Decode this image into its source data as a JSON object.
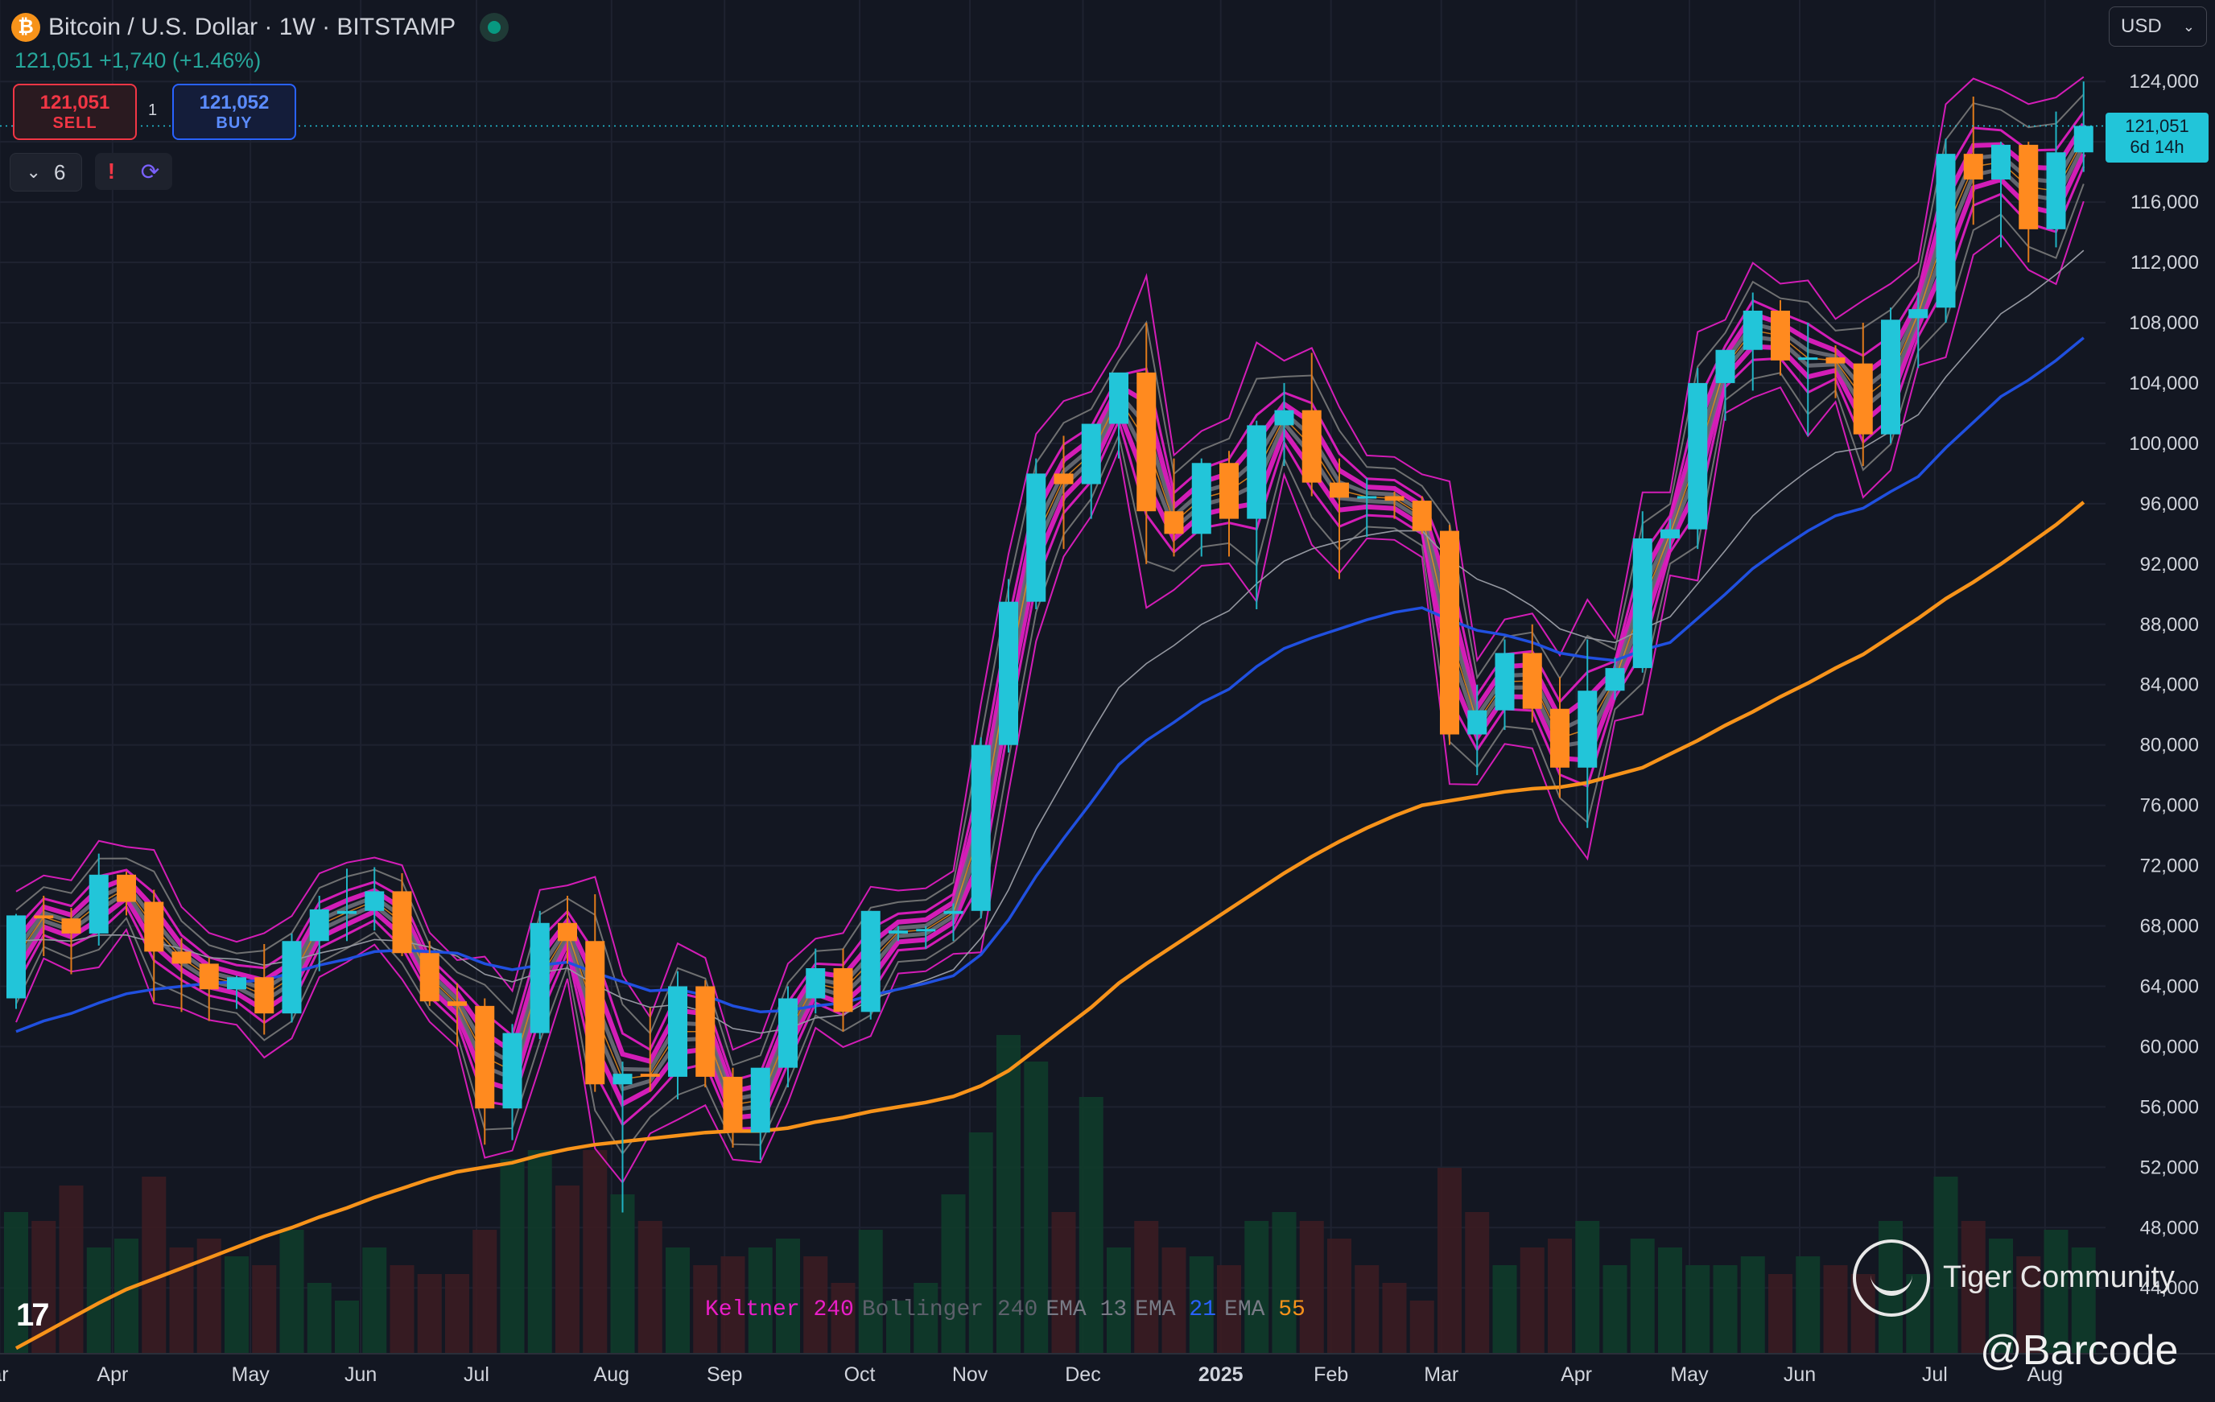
{
  "header": {
    "title": "Bitcoin / U.S. Dollar · 1W · BITSTAMP",
    "price_line": "121,051 +1,740 (+1.46%)",
    "sell_price": "121,051",
    "sell_label": "SELL",
    "buy_price": "121,052",
    "buy_label": "BUY",
    "spread": "1",
    "indicators_count": "6",
    "currency": "USD"
  },
  "price_tag": {
    "price": "121,051",
    "countdown": "6d 14h"
  },
  "legend": [
    {
      "name": "Keltner",
      "param": "240",
      "name_color": "#e91ec8",
      "param_color": "#e91ec8"
    },
    {
      "name": "Bollinger",
      "param": "240",
      "name_color": "#5d606b",
      "param_color": "#5d606b"
    },
    {
      "name": "EMA",
      "param": "13",
      "name_color": "#787b86",
      "param_color": "#787b86"
    },
    {
      "name": "EMA",
      "param": "21",
      "name_color": "#787b86",
      "param_color": "#2962ff"
    },
    {
      "name": "EMA",
      "param": "55",
      "name_color": "#787b86",
      "param_color": "#f7931a"
    }
  ],
  "watermark": {
    "community": "Tiger Community",
    "handle": "@Barcode"
  },
  "colors": {
    "background": "#131722",
    "up": "#22c5d9",
    "down": "#ff8a1f",
    "keltner": "#e91ec8",
    "bollinger": "#7a7a7a",
    "ema13": "#9598a1",
    "ema21": "#2050e0",
    "ema55": "#f7931a",
    "vol_up": "#0f3b2a",
    "vol_down": "#3b1c22"
  },
  "chart_data": {
    "type": "candlestick",
    "title": "Bitcoin / U.S. Dollar · 1W · BITSTAMP",
    "ylim": [
      44000,
      126000
    ],
    "y_ticks": [
      44000,
      48000,
      52000,
      56000,
      60000,
      64000,
      68000,
      72000,
      76000,
      80000,
      84000,
      88000,
      92000,
      96000,
      100000,
      104000,
      108000,
      112000,
      116000,
      120000,
      124000
    ],
    "y_tick_labels": [
      "44,000",
      "48,000",
      "52,000",
      "56,000",
      "60,000",
      "64,000",
      "68,000",
      "72,000",
      "76,000",
      "80,000",
      "84,000",
      "88,000",
      "92,000",
      "96,000",
      "100,000",
      "104,000",
      "108,000",
      "112,000",
      "116,000",
      "120,000",
      "124,000"
    ],
    "x_labels": [
      {
        "label": "ar",
        "week": -0.6
      },
      {
        "label": "Apr",
        "week": 3.5
      },
      {
        "label": "May",
        "week": 8.5
      },
      {
        "label": "Jun",
        "week": 12.5
      },
      {
        "label": "Jul",
        "week": 16.7
      },
      {
        "label": "Aug",
        "week": 21.6
      },
      {
        "label": "Sep",
        "week": 25.7
      },
      {
        "label": "Oct",
        "week": 30.6
      },
      {
        "label": "Nov",
        "week": 34.6
      },
      {
        "label": "Dec",
        "week": 38.7
      },
      {
        "label": "2025",
        "week": 43.7,
        "bold": true
      },
      {
        "label": "Feb",
        "week": 47.7
      },
      {
        "label": "Mar",
        "week": 51.7
      },
      {
        "label": "Apr",
        "week": 56.6
      },
      {
        "label": "May",
        "week": 60.7
      },
      {
        "label": "Jun",
        "week": 64.7
      },
      {
        "label": "Jul",
        "week": 69.6
      },
      {
        "label": "Aug",
        "week": 73.6
      }
    ],
    "candles": [
      [
        63200,
        68800,
        62500,
        68700
      ],
      [
        68700,
        70000,
        66000,
        68500
      ],
      [
        68500,
        69200,
        64800,
        67500
      ],
      [
        67500,
        72800,
        66700,
        71400
      ],
      [
        71400,
        71600,
        68700,
        69600
      ],
      [
        69600,
        70400,
        63000,
        66300
      ],
      [
        66300,
        67200,
        62300,
        65500
      ],
      [
        65500,
        65900,
        61700,
        63800
      ],
      [
        63800,
        64700,
        62500,
        64600
      ],
      [
        64600,
        66800,
        60800,
        62200
      ],
      [
        62200,
        67500,
        61600,
        67000
      ],
      [
        67000,
        70000,
        65000,
        69100
      ],
      [
        68800,
        71800,
        67000,
        69000
      ],
      [
        69000,
        71900,
        67700,
        70300
      ],
      [
        70300,
        71500,
        66000,
        66200
      ],
      [
        66200,
        67000,
        62700,
        63000
      ],
      [
        63000,
        64200,
        60000,
        62700
      ],
      [
        62700,
        63200,
        53500,
        55900
      ],
      [
        55900,
        61500,
        53800,
        60900
      ],
      [
        60900,
        69000,
        60500,
        68200
      ],
      [
        68200,
        70000,
        65500,
        67000
      ],
      [
        67000,
        70100,
        57000,
        57500
      ],
      [
        57500,
        59000,
        49000,
        58200
      ],
      [
        58200,
        62600,
        57000,
        58000
      ],
      [
        58000,
        65000,
        56500,
        64000
      ],
      [
        64000,
        64400,
        57300,
        58000
      ],
      [
        58000,
        58600,
        53300,
        54300
      ],
      [
        54300,
        58500,
        52500,
        58600
      ],
      [
        58600,
        64000,
        57300,
        63200
      ],
      [
        63200,
        66500,
        62200,
        65200
      ],
      [
        65200,
        66500,
        61000,
        62300
      ],
      [
        62300,
        69000,
        61800,
        69000
      ],
      [
        67500,
        68000,
        67000,
        67700
      ],
      [
        67700,
        68000,
        66500,
        67800
      ],
      [
        68800,
        69500,
        67000,
        69000
      ],
      [
        69000,
        80500,
        68500,
        80000
      ],
      [
        80000,
        91000,
        79500,
        89500
      ],
      [
        89500,
        99000,
        89000,
        98000
      ],
      [
        98000,
        100500,
        93000,
        97300
      ],
      [
        97300,
        101000,
        95000,
        101300
      ],
      [
        101300,
        104000,
        99000,
        104700
      ],
      [
        104700,
        108000,
        92000,
        95500
      ],
      [
        95500,
        99000,
        92500,
        94000
      ],
      [
        94000,
        99000,
        92500,
        98700
      ],
      [
        98700,
        99500,
        92500,
        95000
      ],
      [
        95000,
        101500,
        89000,
        101200
      ],
      [
        101200,
        104000,
        98500,
        102200
      ],
      [
        102200,
        106000,
        96500,
        97400
      ],
      [
        97400,
        99000,
        91000,
        96400
      ],
      [
        96400,
        97700,
        93800,
        96500
      ],
      [
        96500,
        96800,
        95000,
        96200
      ],
      [
        96200,
        96500,
        94000,
        94200
      ],
      [
        94200,
        94600,
        80000,
        80700
      ],
      [
        80700,
        84000,
        78000,
        82300
      ],
      [
        82300,
        87000,
        81000,
        86100
      ],
      [
        86100,
        88000,
        81500,
        82400
      ],
      [
        82400,
        84500,
        76500,
        78500
      ],
      [
        78500,
        87000,
        74500,
        83600
      ],
      [
        83600,
        85800,
        83000,
        85100
      ],
      [
        85100,
        95500,
        84800,
        93700
      ],
      [
        93700,
        95000,
        93000,
        94300
      ],
      [
        94300,
        105000,
        93000,
        104000
      ],
      [
        104000,
        106000,
        101500,
        106200
      ],
      [
        106200,
        110000,
        103500,
        108800
      ],
      [
        108800,
        109500,
        104500,
        105500
      ],
      [
        105600,
        108000,
        100500,
        105700
      ],
      [
        105700,
        106500,
        103000,
        105300
      ],
      [
        105300,
        108000,
        98500,
        100600
      ],
      [
        100600,
        109000,
        100000,
        108200
      ],
      [
        108300,
        110000,
        105000,
        108900
      ],
      [
        109000,
        120200,
        108000,
        119200
      ],
      [
        119200,
        123000,
        114500,
        117500
      ],
      [
        117500,
        120000,
        113000,
        119800
      ],
      [
        119800,
        120000,
        112000,
        114200
      ],
      [
        114200,
        122000,
        113000,
        119300
      ],
      [
        119300,
        124000,
        118000,
        121051
      ]
    ],
    "ema13": [
      67000,
      67100,
      67000,
      67400,
      67400,
      66900,
      66500,
      65900,
      65800,
      65400,
      65700,
      66200,
      66600,
      67100,
      67000,
      66600,
      66000,
      64800,
      64300,
      64900,
      65200,
      64100,
      63200,
      62600,
      62800,
      62300,
      61200,
      60900,
      61200,
      61900,
      62100,
      63100,
      63800,
      64400,
      65100,
      67200,
      70400,
      74400,
      77600,
      80800,
      83800,
      85400,
      86600,
      88000,
      88900,
      90700,
      92200,
      93000,
      93500,
      93900,
      94200,
      94200,
      92300,
      91000,
      90300,
      89200,
      87700,
      87100,
      86800,
      87700,
      88500,
      90700,
      92900,
      95200,
      96800,
      98200,
      99400,
      99700,
      100800,
      101900,
      104400,
      106500,
      108600,
      109800,
      111200,
      112800
    ],
    "ema21": [
      61000,
      61700,
      62200,
      62900,
      63500,
      63800,
      64000,
      64200,
      64300,
      64400,
      64900,
      65400,
      65800,
      66300,
      66400,
      66300,
      66200,
      65500,
      65100,
      65400,
      65600,
      64900,
      64300,
      63700,
      63800,
      63400,
      62700,
      62300,
      62400,
      62700,
      62900,
      63400,
      63800,
      64200,
      64700,
      66100,
      68400,
      71300,
      73800,
      76200,
      78700,
      80300,
      81500,
      82800,
      83700,
      85200,
      86400,
      87100,
      87700,
      88300,
      88800,
      89100,
      88300,
      87600,
      87300,
      86800,
      86100,
      85800,
      85600,
      86300,
      86800,
      88400,
      90000,
      91700,
      93000,
      94200,
      95200,
      95700,
      96800,
      97800,
      99700,
      101400,
      103100,
      104200,
      105500,
      107000
    ],
    "ema55": [
      40000,
      41000,
      42000,
      43000,
      43900,
      44600,
      45300,
      46000,
      46700,
      47400,
      48000,
      48700,
      49300,
      50000,
      50600,
      51200,
      51700,
      52000,
      52300,
      52800,
      53200,
      53500,
      53700,
      53900,
      54100,
      54300,
      54400,
      54400,
      54600,
      55000,
      55300,
      55700,
      56000,
      56300,
      56700,
      57400,
      58400,
      59800,
      61200,
      62600,
      64200,
      65500,
      66700,
      67900,
      69100,
      70300,
      71500,
      72600,
      73600,
      74500,
      75300,
      76000,
      76300,
      76600,
      76900,
      77100,
      77200,
      77500,
      78000,
      78500,
      79400,
      80300,
      81300,
      82200,
      83200,
      84100,
      85100,
      86000,
      87200,
      88400,
      89700,
      90800,
      92000,
      93300,
      94600,
      96100
    ],
    "volume": [
      [
        16,
        "up"
      ],
      [
        15,
        "down"
      ],
      [
        19,
        "down"
      ],
      [
        12,
        "up"
      ],
      [
        13,
        "up"
      ],
      [
        20,
        "down"
      ],
      [
        12,
        "down"
      ],
      [
        13,
        "down"
      ],
      [
        11,
        "up"
      ],
      [
        10,
        "down"
      ],
      [
        14,
        "up"
      ],
      [
        8,
        "up"
      ],
      [
        6,
        "up"
      ],
      [
        12,
        "up"
      ],
      [
        10,
        "down"
      ],
      [
        9,
        "down"
      ],
      [
        9,
        "down"
      ],
      [
        14,
        "down"
      ],
      [
        22,
        "up"
      ],
      [
        23,
        "up"
      ],
      [
        19,
        "down"
      ],
      [
        23,
        "down"
      ],
      [
        18,
        "up"
      ],
      [
        15,
        "down"
      ],
      [
        12,
        "up"
      ],
      [
        10,
        "down"
      ],
      [
        11,
        "down"
      ],
      [
        12,
        "up"
      ],
      [
        13,
        "up"
      ],
      [
        11,
        "down"
      ],
      [
        8,
        "down"
      ],
      [
        14,
        "up"
      ],
      [
        6,
        "up"
      ],
      [
        8,
        "up"
      ],
      [
        18,
        "up"
      ],
      [
        25,
        "up"
      ],
      [
        36,
        "up"
      ],
      [
        33,
        "up"
      ],
      [
        16,
        "down"
      ],
      [
        29,
        "up"
      ],
      [
        12,
        "up"
      ],
      [
        15,
        "down"
      ],
      [
        12,
        "down"
      ],
      [
        11,
        "up"
      ],
      [
        10,
        "down"
      ],
      [
        15,
        "up"
      ],
      [
        16,
        "up"
      ],
      [
        15,
        "down"
      ],
      [
        13,
        "down"
      ],
      [
        10,
        "down"
      ],
      [
        8,
        "down"
      ],
      [
        6,
        "down"
      ],
      [
        21,
        "down"
      ],
      [
        16,
        "down"
      ],
      [
        10,
        "up"
      ],
      [
        12,
        "down"
      ],
      [
        13,
        "down"
      ],
      [
        15,
        "up"
      ],
      [
        10,
        "up"
      ],
      [
        13,
        "up"
      ],
      [
        12,
        "up"
      ],
      [
        10,
        "up"
      ],
      [
        10,
        "up"
      ],
      [
        11,
        "up"
      ],
      [
        9,
        "down"
      ],
      [
        11,
        "up"
      ],
      [
        10,
        "down"
      ],
      [
        9,
        "down"
      ],
      [
        15,
        "up"
      ],
      [
        9,
        "up"
      ],
      [
        20,
        "up"
      ],
      [
        15,
        "down"
      ],
      [
        13,
        "up"
      ],
      [
        11,
        "down"
      ],
      [
        14,
        "up"
      ],
      [
        12,
        "up"
      ]
    ]
  }
}
